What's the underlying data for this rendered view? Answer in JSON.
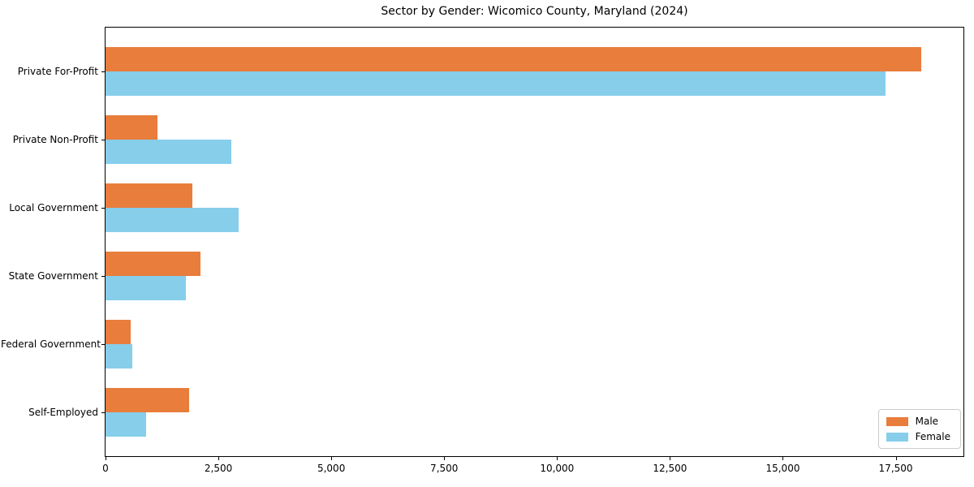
{
  "figure": {
    "background_color": "#ffffff",
    "axis_color": "#000000",
    "text_color": "#000000"
  },
  "chart_data": {
    "type": "bar",
    "orientation": "horizontal",
    "title": "Sector by Gender: Wicomico County, Maryland (2024)",
    "categories": [
      "Private For-Profit",
      "Private Non-Profit",
      "Local Government",
      "State Government",
      "Federal Government",
      "Self-Employed"
    ],
    "series": [
      {
        "name": "Male",
        "color": "#e87d3c",
        "values": [
          18060,
          1150,
          1920,
          2100,
          560,
          1850
        ]
      },
      {
        "name": "Female",
        "color": "#87ceeb",
        "values": [
          17280,
          2790,
          2950,
          1780,
          590,
          900
        ]
      }
    ],
    "xlabel": "",
    "ylabel": "",
    "xlim": [
      0,
      19000
    ],
    "xticks": [
      0,
      2500,
      5000,
      7500,
      10000,
      12500,
      15000,
      17500
    ],
    "xtick_labels": [
      "0",
      "2,500",
      "5,000",
      "7,500",
      "10,000",
      "12,500",
      "15,000",
      "17,500"
    ],
    "grid": false,
    "legend": {
      "position": "lower-right",
      "entries": [
        "Male",
        "Female"
      ]
    }
  }
}
